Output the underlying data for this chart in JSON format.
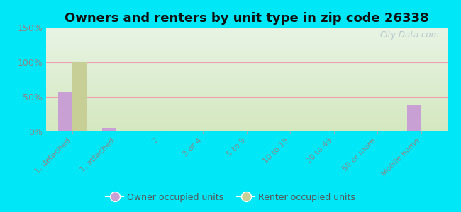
{
  "title": "Owners and renters by unit type in zip code 26338",
  "categories": [
    "1, detached",
    "1, attached",
    "2",
    "3 or 4",
    "5 to 9",
    "10 to 19",
    "20 to 49",
    "50 or more",
    "Mobile home"
  ],
  "owner_values": [
    57,
    5,
    0,
    0,
    0,
    0,
    0,
    0,
    38
  ],
  "renter_values": [
    100,
    0,
    0,
    0,
    0,
    0,
    0,
    0,
    0
  ],
  "owner_color": "#c8a0d4",
  "renter_color": "#c8cf96",
  "background_outer": "#00e8f8",
  "ylim": [
    0,
    150
  ],
  "yticks": [
    0,
    50,
    100,
    150
  ],
  "ytick_labels": [
    "0%",
    "50%",
    "100%",
    "150%"
  ],
  "bar_width": 0.32,
  "title_fontsize": 13,
  "watermark": "City-Data.com",
  "legend_owner": "Owner occupied units",
  "legend_renter": "Renter occupied units",
  "grid_color": "#f0a0b0",
  "tick_color": "#888888",
  "label_fontsize": 8,
  "ytick_fontsize": 9
}
